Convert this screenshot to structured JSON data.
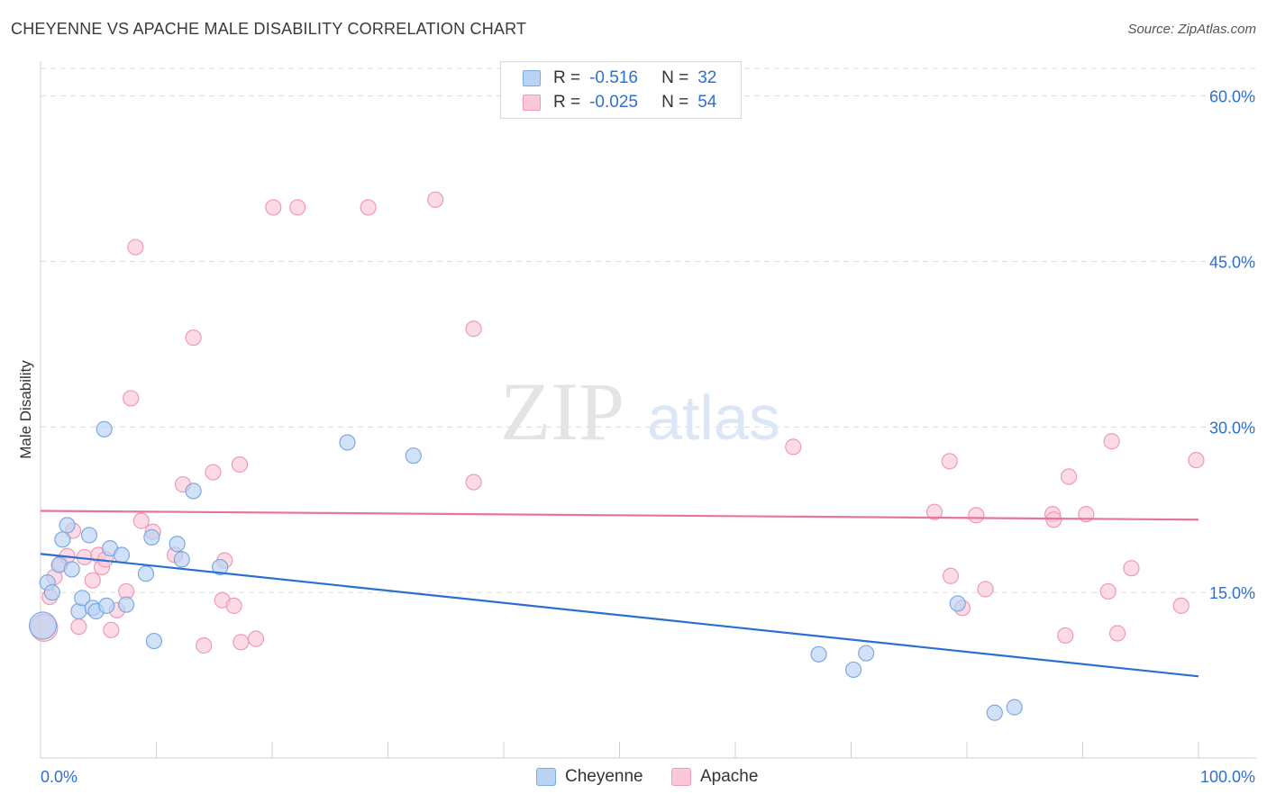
{
  "title": "CHEYENNE VS APACHE MALE DISABILITY CORRELATION CHART",
  "source": "Source: ZipAtlas.com",
  "watermark": {
    "zip": "ZIP",
    "atlas": "atlas"
  },
  "legend": {
    "rows": [
      {
        "r_label": "R =",
        "r_value": "-0.516",
        "n_label": "N =",
        "n_value": "32"
      },
      {
        "r_label": "R =",
        "r_value": "-0.025",
        "n_label": "N =",
        "n_value": "54"
      }
    ]
  },
  "colors": {
    "cheyenne_fill": "#b9d3f5",
    "cheyenne_stroke": "#7fa8e0",
    "cheyenne_line": "#2a6fd1",
    "apache_fill": "#fac8d8",
    "apache_stroke": "#ee9ab5",
    "apache_line": "#e8739b",
    "tick_label": "#2f6fd0",
    "grid": "#dcdcdc"
  },
  "chart_data": {
    "type": "scatter",
    "xlabel": "",
    "ylabel": "Male Disability",
    "xlim": [
      0,
      100
    ],
    "ylim": [
      0,
      62.5
    ],
    "x_tick_labels": [
      "0.0%",
      "100.0%"
    ],
    "y_ticks": [
      15,
      30,
      45,
      60
    ],
    "y_tick_labels": [
      "15.0%",
      "30.0%",
      "45.0%",
      "60.0%"
    ],
    "grid": "horizontal dashed",
    "legend_position": "top-center",
    "series": [
      {
        "name": "Cheyenne",
        "r": -0.516,
        "n": 32,
        "trend": [
          [
            0,
            18.5
          ],
          [
            100,
            7.4
          ]
        ],
        "points": [
          [
            0.2,
            12.0
          ],
          [
            0.6,
            15.9
          ],
          [
            1.0,
            15.0
          ],
          [
            1.6,
            17.5
          ],
          [
            1.9,
            19.8
          ],
          [
            2.3,
            21.1
          ],
          [
            2.7,
            17.1
          ],
          [
            3.3,
            13.3
          ],
          [
            3.6,
            14.5
          ],
          [
            4.2,
            20.2
          ],
          [
            4.5,
            13.6
          ],
          [
            4.8,
            13.3
          ],
          [
            5.5,
            29.8
          ],
          [
            5.7,
            13.8
          ],
          [
            6.0,
            19.0
          ],
          [
            7.0,
            18.4
          ],
          [
            7.4,
            13.9
          ],
          [
            9.1,
            16.7
          ],
          [
            9.6,
            20.0
          ],
          [
            9.8,
            10.6
          ],
          [
            11.8,
            19.4
          ],
          [
            12.2,
            18.0
          ],
          [
            13.2,
            24.2
          ],
          [
            15.5,
            17.3
          ],
          [
            26.5,
            28.6
          ],
          [
            32.2,
            27.4
          ],
          [
            67.2,
            9.4
          ],
          [
            70.2,
            8.0
          ],
          [
            71.3,
            9.5
          ],
          [
            79.2,
            14.0
          ],
          [
            82.4,
            4.1
          ],
          [
            84.1,
            4.6
          ]
        ]
      },
      {
        "name": "Apache",
        "r": -0.025,
        "n": 54,
        "trend": [
          [
            0,
            22.4
          ],
          [
            100,
            21.6
          ]
        ],
        "points": [
          [
            0.3,
            11.8
          ],
          [
            0.8,
            14.6
          ],
          [
            1.2,
            16.4
          ],
          [
            1.7,
            17.6
          ],
          [
            2.3,
            18.3
          ],
          [
            2.8,
            20.6
          ],
          [
            3.3,
            11.9
          ],
          [
            3.8,
            18.2
          ],
          [
            4.5,
            16.1
          ],
          [
            5.0,
            18.4
          ],
          [
            5.3,
            17.3
          ],
          [
            5.6,
            18.0
          ],
          [
            6.1,
            11.6
          ],
          [
            6.6,
            13.4
          ],
          [
            7.4,
            15.1
          ],
          [
            7.8,
            32.6
          ],
          [
            8.2,
            46.3
          ],
          [
            8.7,
            21.5
          ],
          [
            9.7,
            20.5
          ],
          [
            11.6,
            18.4
          ],
          [
            12.3,
            24.8
          ],
          [
            13.2,
            38.1
          ],
          [
            14.1,
            10.2
          ],
          [
            14.9,
            25.9
          ],
          [
            15.7,
            14.3
          ],
          [
            15.9,
            17.9
          ],
          [
            16.7,
            13.8
          ],
          [
            17.2,
            26.6
          ],
          [
            17.3,
            10.5
          ],
          [
            18.6,
            10.8
          ],
          [
            20.1,
            49.9
          ],
          [
            22.2,
            49.9
          ],
          [
            28.3,
            49.9
          ],
          [
            34.1,
            50.6
          ],
          [
            37.4,
            38.9
          ],
          [
            37.4,
            25.0
          ],
          [
            65.0,
            28.2
          ],
          [
            77.2,
            22.3
          ],
          [
            78.6,
            16.5
          ],
          [
            78.5,
            26.9
          ],
          [
            79.6,
            13.6
          ],
          [
            80.8,
            22.0
          ],
          [
            81.6,
            15.3
          ],
          [
            87.4,
            22.1
          ],
          [
            87.5,
            21.6
          ],
          [
            88.5,
            11.1
          ],
          [
            88.8,
            25.5
          ],
          [
            90.3,
            22.1
          ],
          [
            92.2,
            15.1
          ],
          [
            92.5,
            28.7
          ],
          [
            93.0,
            11.3
          ],
          [
            94.2,
            17.2
          ],
          [
            98.5,
            13.8
          ],
          [
            99.8,
            27.0
          ]
        ]
      }
    ]
  }
}
